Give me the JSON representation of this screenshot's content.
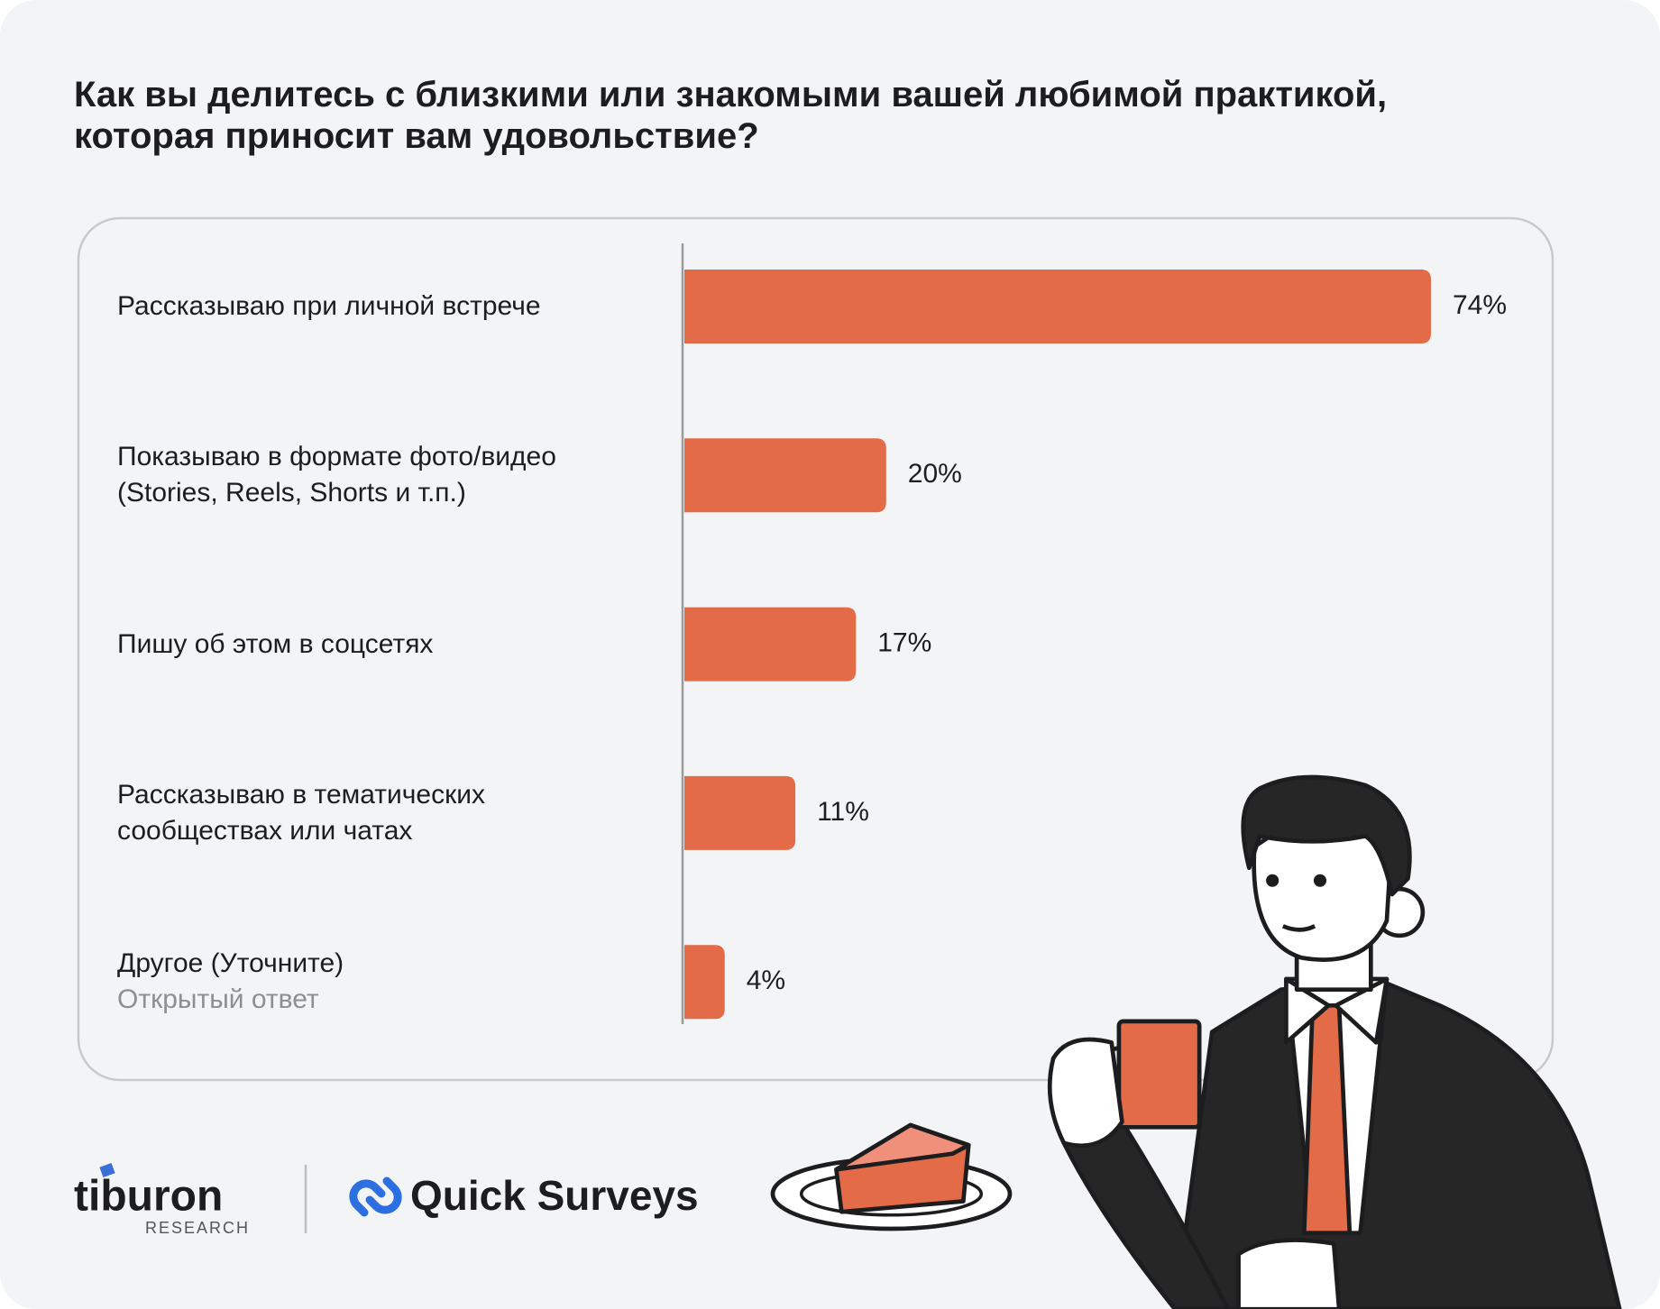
{
  "chart_data": {
    "type": "bar",
    "orientation": "horizontal",
    "title": "Как вы делитесь с близкими или знакомыми вашей любимой практикой, которая приносит вам удовольствие?",
    "categories": [
      "Рассказываю при личной встрече",
      "Показываю в формате фото/видео (Stories, Reels, Shorts и т.п.)",
      "Пишу об этом в соцсетях",
      "Рассказываю в тематических сообществах или чатах",
      "Другое (Уточните)"
    ],
    "annotation": "Открытый ответ",
    "values": [
      74,
      20,
      17,
      11,
      4
    ],
    "value_labels": [
      "74%",
      "20%",
      "17%",
      "11%",
      "4%"
    ],
    "color": "#e36b48"
  },
  "footer": {
    "logo_1": "tiburon",
    "logo_1_sub": "RESEARCH",
    "logo_2": "Quick Surveys"
  }
}
